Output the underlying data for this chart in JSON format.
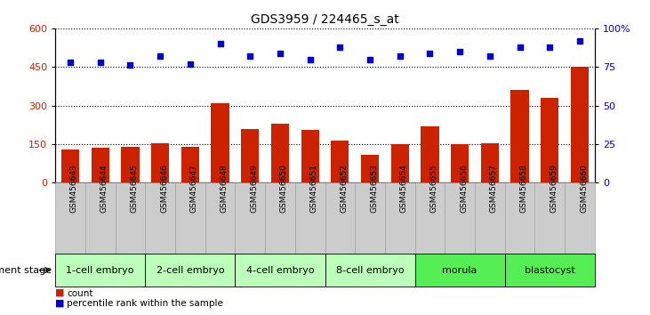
{
  "title": "GDS3959 / 224465_s_at",
  "samples": [
    "GSM456643",
    "GSM456644",
    "GSM456645",
    "GSM456646",
    "GSM456647",
    "GSM456648",
    "GSM456649",
    "GSM456650",
    "GSM456651",
    "GSM456652",
    "GSM456653",
    "GSM456654",
    "GSM456655",
    "GSM456656",
    "GSM456657",
    "GSM456658",
    "GSM456659",
    "GSM456660"
  ],
  "counts": [
    130,
    135,
    140,
    155,
    140,
    310,
    210,
    230,
    205,
    165,
    110,
    150,
    220,
    150,
    155,
    360,
    330,
    450
  ],
  "percentile_ranks": [
    78,
    78,
    76,
    82,
    77,
    90,
    82,
    84,
    80,
    88,
    80,
    82,
    84,
    85,
    82,
    88,
    88,
    92
  ],
  "stages": [
    {
      "label": "1-cell embryo",
      "start": 0,
      "end": 3,
      "color": "#bbffbb"
    },
    {
      "label": "2-cell embryo",
      "start": 3,
      "end": 6,
      "color": "#bbffbb"
    },
    {
      "label": "4-cell embryo",
      "start": 6,
      "end": 9,
      "color": "#bbffbb"
    },
    {
      "label": "8-cell embryo",
      "start": 9,
      "end": 12,
      "color": "#bbffbb"
    },
    {
      "label": "morula",
      "start": 12,
      "end": 15,
      "color": "#55ee55"
    },
    {
      "label": "blastocyst",
      "start": 15,
      "end": 18,
      "color": "#55ee55"
    }
  ],
  "bar_color": "#cc2200",
  "dot_color": "#0000cc",
  "ylim_left": [
    0,
    600
  ],
  "ylim_right": [
    0,
    100
  ],
  "yticks_left": [
    0,
    150,
    300,
    450,
    600
  ],
  "yticks_right": [
    0,
    25,
    50,
    75,
    100
  ],
  "tick_label_bg": "#cccccc",
  "xlabel": "",
  "ylabel_left": "",
  "ylabel_right": ""
}
